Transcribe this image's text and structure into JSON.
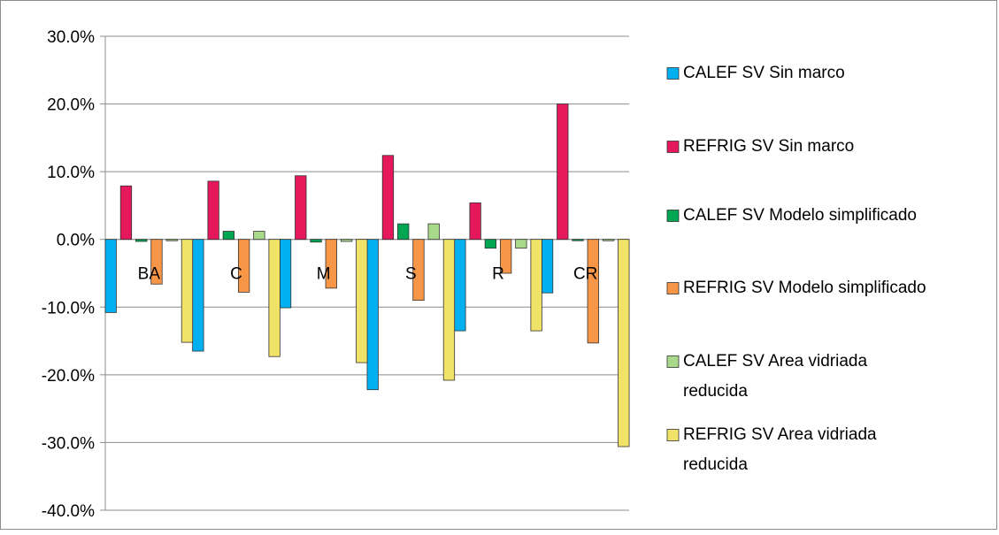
{
  "chart_data": {
    "type": "bar",
    "categories": [
      "BA",
      "C",
      "M",
      "S",
      "R",
      "CR"
    ],
    "ylim": [
      -0.4,
      0.3
    ],
    "yticks": [
      -0.4,
      -0.3,
      -0.2,
      -0.1,
      0.0,
      0.1,
      0.2,
      0.3
    ],
    "ytick_labels": [
      "-40.0%",
      "-30.0%",
      "-20.0%",
      "-10.0%",
      "0.0%",
      "10.0%",
      "20.0%",
      "30.0%"
    ],
    "grid": "horizontal",
    "legend_position": "right",
    "series": [
      {
        "name": "CALEF SV Sin marco",
        "color": "#00b0f0",
        "values": [
          -0.108,
          -0.165,
          -0.101,
          -0.222,
          -0.135,
          -0.079
        ]
      },
      {
        "name": "REFRIG SV Sin marco",
        "color": "#e6185c",
        "values": [
          0.079,
          0.086,
          0.094,
          0.124,
          0.054,
          0.2
        ]
      },
      {
        "name": "CALEF SV Modelo simplificado",
        "color": "#00a651",
        "values": [
          -0.003,
          0.012,
          -0.004,
          0.023,
          -0.013,
          -0.002
        ]
      },
      {
        "name": "REFRIG SV Modelo simplificado",
        "color": "#f79646",
        "values": [
          -0.066,
          -0.078,
          -0.072,
          -0.09,
          -0.05,
          -0.153
        ]
      },
      {
        "name": "CALEF SV Area vidriada reducida",
        "color": "#a9d98b",
        "legend_lines": [
          "CALEF SV Area vidriada",
          "reducida"
        ],
        "values": [
          -0.002,
          0.012,
          -0.003,
          0.023,
          -0.013,
          -0.002
        ]
      },
      {
        "name": "REFRIG SV Area vidriada reducida",
        "color": "#f1e268",
        "legend_lines": [
          "REFRIG SV Area vidriada",
          "reducida"
        ],
        "values": [
          -0.152,
          -0.173,
          -0.182,
          -0.208,
          -0.135,
          -0.306
        ]
      }
    ]
  }
}
